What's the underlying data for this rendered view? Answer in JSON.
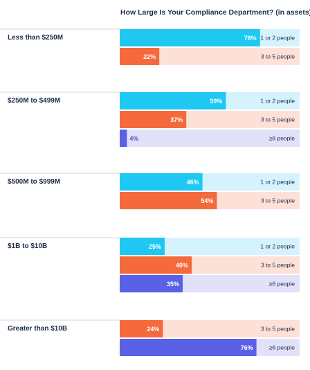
{
  "chart_data": {
    "type": "bar",
    "orientation": "horizontal",
    "title": "How Large Is Your Compliance Department? (in assets)",
    "xlim": [
      0,
      100
    ],
    "unit": "%",
    "colors": {
      "1 or 2 people": {
        "fill": "#1ec8f2",
        "track": "#d5f3fc"
      },
      "3 to 5 people": {
        "fill": "#f56a3c",
        "track": "#fde1d6"
      },
      "≥6 people": {
        "fill": "#5b61e6",
        "track": "#e1e2fa"
      }
    },
    "groups": [
      {
        "category": "Less than $250M",
        "bars": [
          {
            "series": "1 or 2 people",
            "value": 78
          },
          {
            "series": "3 to 5 people",
            "value": 22
          }
        ]
      },
      {
        "category": "$250M to $499M",
        "bars": [
          {
            "series": "1 or 2 people",
            "value": 59
          },
          {
            "series": "3 to 5 people",
            "value": 37
          },
          {
            "series": "≥6 people",
            "value": 4
          }
        ]
      },
      {
        "category": "$500M to $999M",
        "bars": [
          {
            "series": "1 or 2 people",
            "value": 46
          },
          {
            "series": "3 to 5 people",
            "value": 54
          }
        ]
      },
      {
        "category": "$1B to $10B",
        "bars": [
          {
            "series": "1 or 2 people",
            "value": 25
          },
          {
            "series": "3 to 5 people",
            "value": 40
          },
          {
            "series": "≥6 people",
            "value": 35
          }
        ]
      },
      {
        "category": "Greater than $10B",
        "bars": [
          {
            "series": "3 to 5 people",
            "value": 24
          },
          {
            "series": "≥6 people",
            "value": 76
          }
        ]
      }
    ]
  }
}
